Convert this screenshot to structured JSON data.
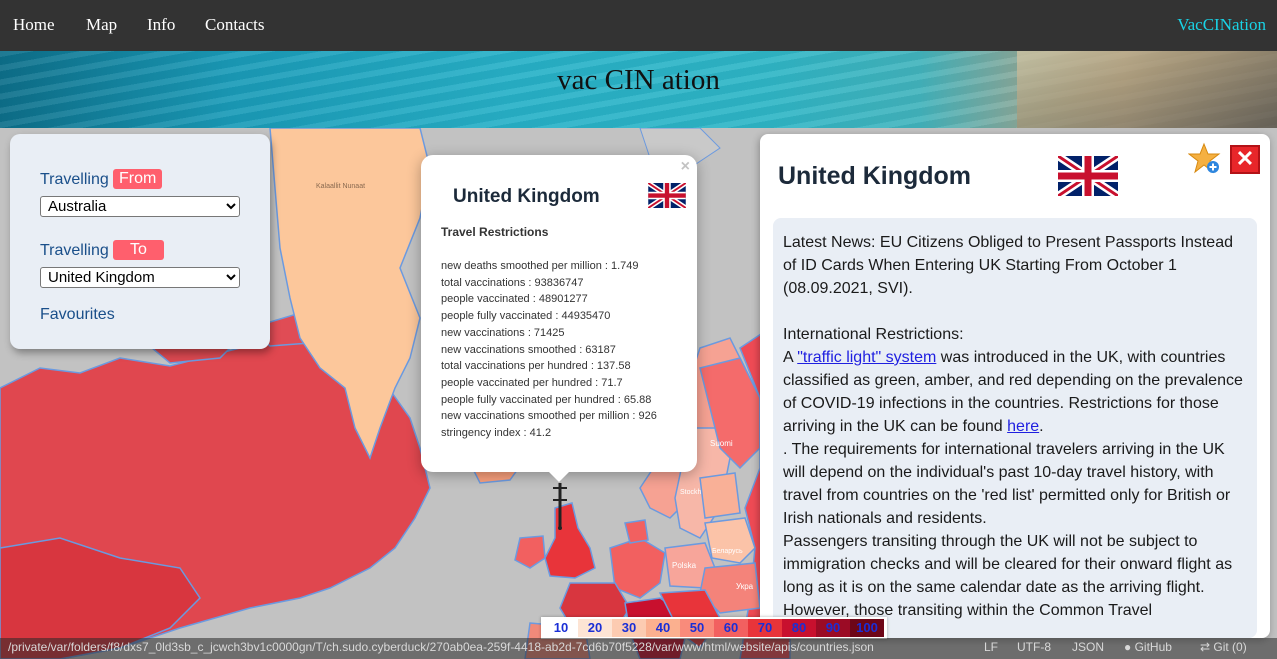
{
  "nav": {
    "items": [
      "Home",
      "Map",
      "Info",
      "Contacts"
    ],
    "brand": "VacCINation"
  },
  "banner": {
    "title": "vac CIN ation"
  },
  "map_labels": {
    "greenland": "Kalaallit Nunaat",
    "suomi": "Suomi",
    "stockholm": "Stockholm",
    "polska": "Polska",
    "belarus": "Беларусь",
    "ukraine": "Укра"
  },
  "search_panel": {
    "from_label": "Travelling",
    "from_tag": "From",
    "from_value": "Australia",
    "to_label": "Travelling",
    "to_tag": "To",
    "to_value": "United Kingdom",
    "favourites": "Favourites"
  },
  "popup": {
    "close": "×",
    "country": "United Kingdom",
    "subtitle": "Travel Restrictions",
    "stats": [
      "new deaths smoothed per million : 1.749",
      "total vaccinations : 93836747",
      "people vaccinated : 48901277",
      "people fully vaccinated : 44935470",
      "new vaccinations : 71425",
      "new vaccinations smoothed : 63187",
      "total vaccinations per hundred : 137.58",
      "people vaccinated per hundred : 71.7",
      "people fully vaccinated per hundred : 65.88",
      "new vaccinations smoothed per million : 926",
      "stringency index : 41.2"
    ]
  },
  "detail": {
    "country": "United Kingdom",
    "close": "✕",
    "news": "Latest News: EU Citizens Obliged to Present Passports Instead of ID Cards When Entering UK Starting From October 1 (08.09.2021, SVI).",
    "intl_heading": "International Restrictions:",
    "line_a_prefix": "A ",
    "line_a_link": "\"traffic light\" system",
    "line_a_rest": " was introduced in the UK, with countries classified as green, amber, and red depending on the prevalence of COVID-19 infections in the countries. Restrictions for those arriving in the UK can be found ",
    "line_a_link2": "here",
    "line_a_end": ".",
    "para2": ". The requirements for international travelers arriving in the UK will depend on the individual's past 10-day travel history, with travel from countries on the 'red list' permitted only for British or Irish nationals and residents.",
    "para3": "Passengers transiting through the UK will not be subject to immigration checks and will be cleared for their onward flight as long as it is on the same calendar date as the arriving flight. However, those transiting within the Common Travel"
  },
  "legend": {
    "labels": [
      "10",
      "20",
      "30",
      "40",
      "50",
      "60",
      "70",
      "80",
      "90",
      "100"
    ],
    "colors": [
      "#ffffff",
      "#fde4d4",
      "#fccbb1",
      "#fbb08f",
      "#f98b7b",
      "#f26060",
      "#e8343a",
      "#c8102e",
      "#9b0b25",
      "#6d0618"
    ]
  },
  "status": {
    "path": "/private/var/folders/f8/dxs7_0ld3sb_c_jcwch3bv1c0000gn/T/ch.sudo.cyberduck/270ab0ea-259f-4418-ab2d-7cd6b70f5228/var/www/html/website/apis/countries.json",
    "lf": "LF",
    "encoding": "UTF-8",
    "lang": "JSON",
    "github": "GitHub",
    "git": "Git (0)"
  }
}
